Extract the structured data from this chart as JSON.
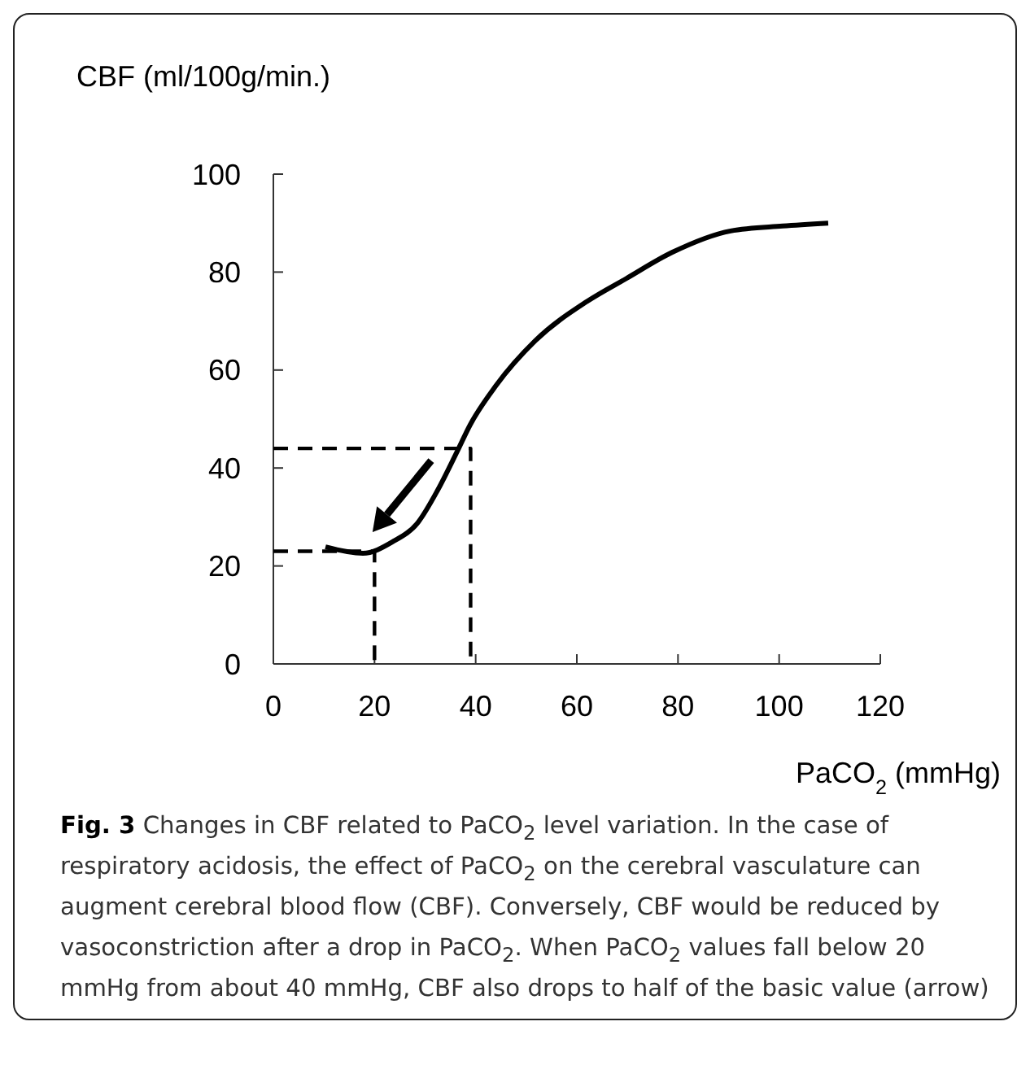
{
  "chart_data": {
    "type": "line",
    "xlabel": "PaCO$_{2}$ (mmHg)",
    "ylabel": "CBF (ml/100g/min.)",
    "xlim": [
      0,
      120
    ],
    "xticks": [
      0,
      20,
      40,
      60,
      80,
      100,
      120
    ],
    "ylim": [
      0,
      100
    ],
    "yticks": [
      0,
      20,
      40,
      60,
      80,
      100
    ],
    "grid": false,
    "series": [
      {
        "color": "#000000",
        "line_style": "solid",
        "x": [
          10.3,
          17.7,
          23.5,
          28.6,
          32.5,
          36.4,
          38.9,
          44,
          51.8,
          62,
          69.8,
          78.8,
          90.4,
          100.7,
          109.7
        ],
        "values": [
          23.9,
          22.6,
          24.9,
          28.9,
          35.5,
          43.5,
          48.8,
          56.8,
          66,
          74,
          78.7,
          84,
          88.4,
          89.4,
          90
        ]
      },
      {
        "color": "#000000",
        "line_style": "dashed",
        "x": [
          0,
          39,
          39
        ],
        "values": [
          44,
          44,
          0
        ]
      },
      {
        "color": "#000000",
        "line_style": "dashed",
        "x": [
          0,
          20,
          20
        ],
        "values": [
          23,
          23,
          0
        ]
      }
    ],
    "annotations": [
      "Fig. 3",
      "Changes in CBF related to PaCO$_{2}$ level variation. In the case of respiratory acidosis, the effect of PaCO$_{2}$ on the cerebral vasculature can augment cerebral blood flow (CBF). Conversely, CBF would be reduced by vasoconstriction after a drop in PaCO$_{2}$. When PaCO$_{2}$ values fall below 20 mmHg from about 40 mmHg, CBF also drops to half of the basic value (arrow)"
    ]
  }
}
